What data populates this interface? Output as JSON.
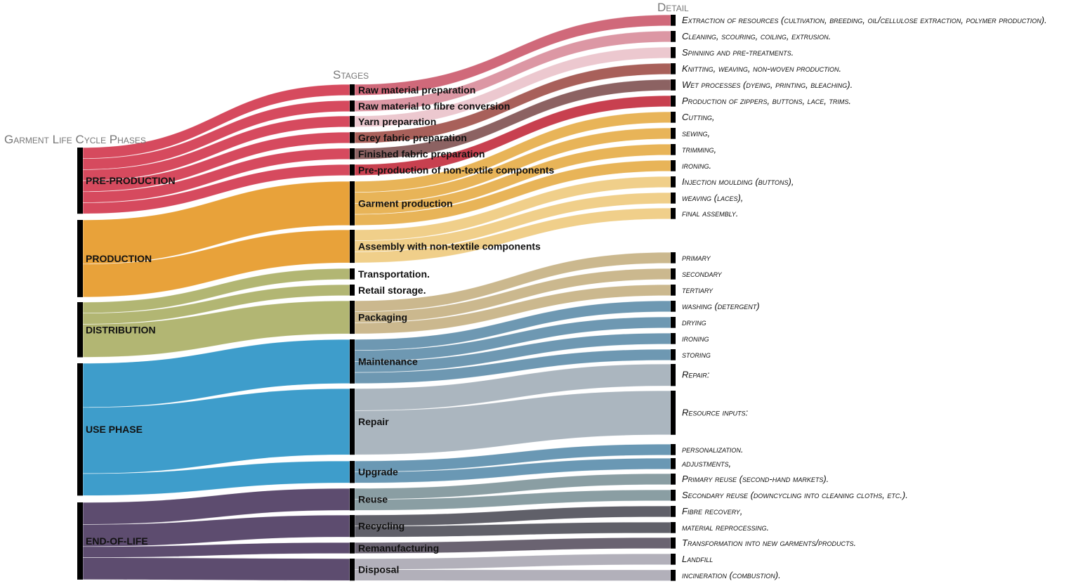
{
  "headers": {
    "phases": "Garment Life Cycle Phases",
    "stages": "Stages",
    "detail": "Detail"
  },
  "phases": [
    {
      "label": "PRE-PRODUCTION",
      "color": "#d64a5e",
      "stages": [
        {
          "label": "Raw material preparation",
          "color": "#d0697a",
          "details": [
            {
              "label": "Extraction of resources (cultivation, breeding, oil/cellulose extraction, polymer production).",
              "value": 1
            }
          ]
        },
        {
          "label": "Raw material to fibre conversion",
          "color": "#dc97a4",
          "details": [
            {
              "label": "Cleaning, scouring, coiling, extrusion.",
              "value": 1
            }
          ]
        },
        {
          "label": "Yarn preparation",
          "color": "#ecc8cf",
          "details": [
            {
              "label": "Spinning and pre-treatments.",
              "value": 1
            }
          ]
        },
        {
          "label": "Grey fabric preparation",
          "color": "#a8605a",
          "details": [
            {
              "label": "Knitting, weaving, non-woven production.",
              "value": 1
            }
          ]
        },
        {
          "label": "Finished fabric preparation",
          "color": "#8c6262",
          "details": [
            {
              "label": "Wet processes (dyeing, printing, bleaching).",
              "value": 1
            }
          ]
        },
        {
          "label": "Pre-production of non-textile components",
          "color": "#c8404f",
          "details": [
            {
              "label": "Production of zippers, buttons, lace, trims.",
              "value": 1
            }
          ]
        }
      ]
    },
    {
      "label": "PRODUCTION",
      "color": "#e8a23a",
      "stages": [
        {
          "label": "Garment production",
          "color": "#e8b458",
          "details": [
            {
              "label": "Cutting,",
              "value": 1
            },
            {
              "label": "sewing,",
              "value": 1
            },
            {
              "label": "trimming,",
              "value": 1
            },
            {
              "label": "ironing.",
              "value": 1
            }
          ]
        },
        {
          "label": "Assembly with non-textile components",
          "color": "#f0cf8a",
          "details": [
            {
              "label": "Injection moulding (buttons),",
              "value": 1
            },
            {
              "label": "weaving (laces),",
              "value": 1
            },
            {
              "label": "final assembly.",
              "value": 1
            }
          ]
        }
      ]
    },
    {
      "label": "DISTRIBUTION",
      "color": "#b2b673",
      "stages": [
        {
          "label": "Transportation.",
          "color": "#b2b673",
          "value": 1,
          "details": []
        },
        {
          "label": "Retail storage.",
          "color": "#b2b673",
          "value": 1,
          "details": []
        },
        {
          "label": "Packaging",
          "color": "#cbb88e",
          "details": [
            {
              "label": "primary",
              "value": 1
            },
            {
              "label": "secondary",
              "value": 1
            },
            {
              "label": "tertiary",
              "value": 1
            }
          ]
        }
      ]
    },
    {
      "label": "USE PHASE",
      "color": "#3e9dcb",
      "stages": [
        {
          "label": "Maintenance",
          "color": "#6e98b2",
          "details": [
            {
              "label": "washing (detergent)",
              "value": 1
            },
            {
              "label": "drying",
              "value": 1
            },
            {
              "label": "ironing",
              "value": 1
            },
            {
              "label": "storing",
              "value": 1
            }
          ]
        },
        {
          "label": "Repair",
          "color": "#abb6bf",
          "details": [
            {
              "label": "Repair:",
              "value": 2
            },
            {
              "label": "Resource inputs:",
              "value": 4
            }
          ]
        },
        {
          "label": "Upgrade",
          "color": "#6a98b4",
          "details": [
            {
              "label": "personalization.",
              "value": 1
            },
            {
              "label": "adjustments,",
              "value": 1
            }
          ]
        }
      ]
    },
    {
      "label": "END-OF-LIFE",
      "color": "#5d4c6f",
      "stages": [
        {
          "label": "Reuse",
          "color": "#8a9ea3",
          "details": [
            {
              "label": "Primary reuse (second-hand markets).",
              "value": 1
            },
            {
              "label": "Secondary reuse (downcycling into cleaning cloths, etc.).",
              "value": 1
            }
          ]
        },
        {
          "label": "Recycling",
          "color": "#606069",
          "details": [
            {
              "label": "Fibre recovery,",
              "value": 1
            },
            {
              "label": "material reprocessing.",
              "value": 1
            }
          ]
        },
        {
          "label": "Remanufacturing",
          "color": "#6a6371",
          "details": [
            {
              "label": "Transformation into new garments/products.",
              "value": 1
            }
          ]
        },
        {
          "label": "Disposal",
          "color": "#b2b0ba",
          "details": [
            {
              "label": "Landfill",
              "value": 1
            },
            {
              "label": "incineration (combustion).",
              "value": 1
            }
          ]
        }
      ]
    }
  ]
}
